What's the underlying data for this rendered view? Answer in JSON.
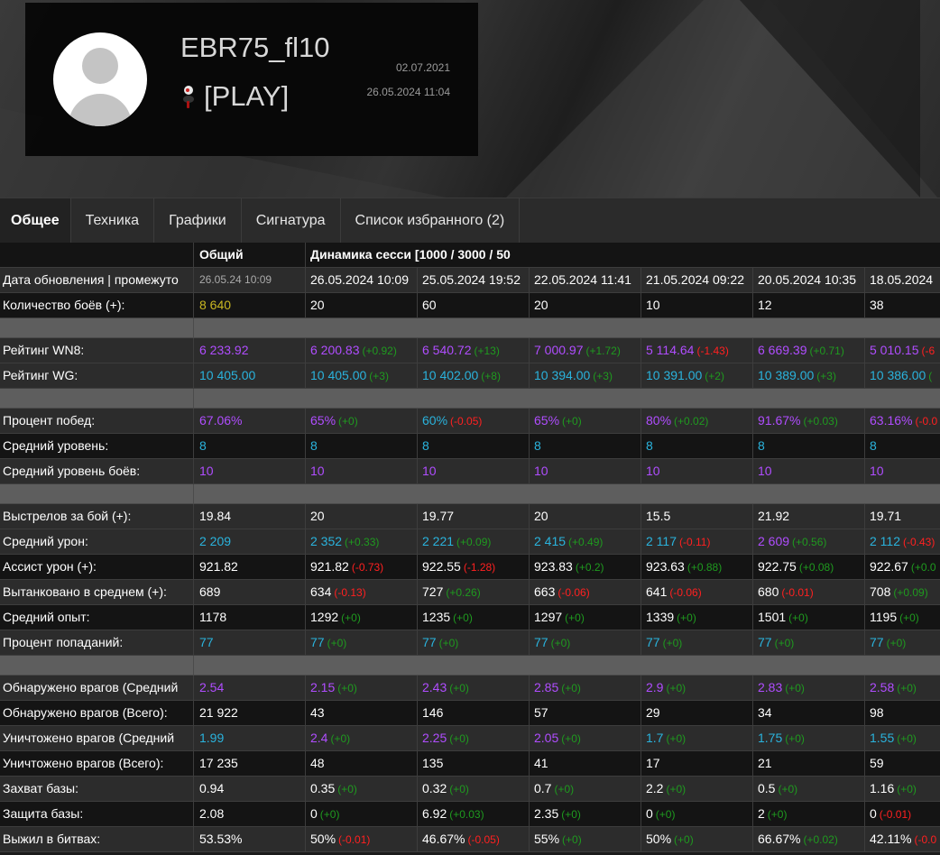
{
  "profile": {
    "name": "EBR75_fl10",
    "clan": "[PLAY]",
    "registered": "02.07.2021",
    "last_seen": "26.05.2024 11:04"
  },
  "tabs": [
    {
      "label": "Общее",
      "active": true
    },
    {
      "label": "Техника"
    },
    {
      "label": "Графики"
    },
    {
      "label": "Сигнатура"
    },
    {
      "label": "Список избранного (2)"
    }
  ],
  "colors": {
    "purple": "#b04dff",
    "cyan": "#2ab3dd",
    "yellow": "#c9b722",
    "green": "#1f9a1f",
    "red": "#ff2020"
  },
  "table": {
    "header": {
      "overall": "Общий",
      "sessions": "Динамика сесси [1000 / 3000 / 50"
    },
    "rows": [
      {
        "label": "Дата обновления | промежуто",
        "bg": "l",
        "overall": {
          "v": "26.05.24 10:09",
          "c": "small"
        },
        "cells": [
          {
            "v": "26.05.2024 10:09"
          },
          {
            "v": "25.05.2024 19:52"
          },
          {
            "v": "22.05.2024 11:41"
          },
          {
            "v": "21.05.2024 09:22"
          },
          {
            "v": "20.05.2024 10:35"
          },
          {
            "v": "18.05.2024"
          }
        ]
      },
      {
        "label": "Количество боёв (+):",
        "bg": "d",
        "overall": {
          "v": "8 640",
          "c": "y"
        },
        "cells": [
          {
            "v": "20"
          },
          {
            "v": "60"
          },
          {
            "v": "20"
          },
          {
            "v": "10"
          },
          {
            "v": "12"
          },
          {
            "v": "38"
          }
        ]
      },
      {
        "sep": true
      },
      {
        "label": "Рейтинг WN8:",
        "bg": "l",
        "overall": {
          "v": "6 233.92",
          "c": "p"
        },
        "cells": [
          {
            "v": "6 200.83",
            "c": "p",
            "d": "(+0.92)",
            "dc": "dg"
          },
          {
            "v": "6 540.72",
            "c": "p",
            "d": "(+13)",
            "dc": "dg"
          },
          {
            "v": "7 000.97",
            "c": "p",
            "d": "(+1.72)",
            "dc": "dg"
          },
          {
            "v": "5 114.64",
            "c": "p",
            "d": "(-1.43)",
            "dc": "dr"
          },
          {
            "v": "6 669.39",
            "c": "p",
            "d": "(+0.71)",
            "dc": "dg"
          },
          {
            "v": "5 010.15",
            "c": "p",
            "d": "(-6",
            "dc": "dr"
          }
        ]
      },
      {
        "label": "Рейтинг WG:",
        "bg": "l",
        "overall": {
          "v": "10 405.00",
          "c": "cy"
        },
        "cells": [
          {
            "v": "10 405.00",
            "c": "cy",
            "d": "(+3)",
            "dc": "dg"
          },
          {
            "v": "10 402.00",
            "c": "cy",
            "d": "(+8)",
            "dc": "dg"
          },
          {
            "v": "10 394.00",
            "c": "cy",
            "d": "(+3)",
            "dc": "dg"
          },
          {
            "v": "10 391.00",
            "c": "cy",
            "d": "(+2)",
            "dc": "dg"
          },
          {
            "v": "10 389.00",
            "c": "cy",
            "d": "(+3)",
            "dc": "dg"
          },
          {
            "v": "10 386.00",
            "c": "cy",
            "d": "(",
            "dc": "dg"
          }
        ]
      },
      {
        "sep": true
      },
      {
        "label": "Процент побед:",
        "bg": "l",
        "overall": {
          "v": "67.06%",
          "c": "p"
        },
        "cells": [
          {
            "v": "65%",
            "c": "p",
            "d": "(+0)",
            "dc": "dg"
          },
          {
            "v": "60%",
            "c": "cy",
            "d": "(-0.05)",
            "dc": "dr"
          },
          {
            "v": "65%",
            "c": "p",
            "d": "(+0)",
            "dc": "dg"
          },
          {
            "v": "80%",
            "c": "p",
            "d": "(+0.02)",
            "dc": "dg"
          },
          {
            "v": "91.67%",
            "c": "p",
            "d": "(+0.03)",
            "dc": "dg"
          },
          {
            "v": "63.16%",
            "c": "p",
            "d": "(-0.0",
            "dc": "dr"
          }
        ]
      },
      {
        "label": "Средний уровень:",
        "bg": "d",
        "overall": {
          "v": "8",
          "c": "cy"
        },
        "cells": [
          {
            "v": "8",
            "c": "cy"
          },
          {
            "v": "8",
            "c": "cy"
          },
          {
            "v": "8",
            "c": "cy"
          },
          {
            "v": "8",
            "c": "cy"
          },
          {
            "v": "8",
            "c": "cy"
          },
          {
            "v": "8",
            "c": "cy"
          }
        ]
      },
      {
        "label": "Средний уровень боёв:",
        "bg": "l",
        "overall": {
          "v": "10",
          "c": "p"
        },
        "cells": [
          {
            "v": "10",
            "c": "p"
          },
          {
            "v": "10",
            "c": "p"
          },
          {
            "v": "10",
            "c": "p"
          },
          {
            "v": "10",
            "c": "p"
          },
          {
            "v": "10",
            "c": "p"
          },
          {
            "v": "10",
            "c": "p"
          }
        ]
      },
      {
        "sep": true
      },
      {
        "label": "Выстрелов за бой (+):",
        "bg": "l",
        "overall": {
          "v": "19.84"
        },
        "cells": [
          {
            "v": "20"
          },
          {
            "v": "19.77"
          },
          {
            "v": "20"
          },
          {
            "v": "15.5"
          },
          {
            "v": "21.92"
          },
          {
            "v": "19.71"
          }
        ]
      },
      {
        "label": "Средний урон:",
        "bg": "l",
        "overall": {
          "v": "2 209",
          "c": "cy"
        },
        "cells": [
          {
            "v": "2 352",
            "c": "cy",
            "d": "(+0.33)",
            "dc": "dg"
          },
          {
            "v": "2 221",
            "c": "cy",
            "d": "(+0.09)",
            "dc": "dg"
          },
          {
            "v": "2 415",
            "c": "cy",
            "d": "(+0.49)",
            "dc": "dg"
          },
          {
            "v": "2 117",
            "c": "cy",
            "d": "(-0.11)",
            "dc": "dr"
          },
          {
            "v": "2 609",
            "c": "p",
            "d": "(+0.56)",
            "dc": "dg"
          },
          {
            "v": "2 112",
            "c": "cy",
            "d": "(-0.43)",
            "dc": "dr"
          }
        ]
      },
      {
        "label": "Ассист урон (+):",
        "bg": "d",
        "overall": {
          "v": "921.82"
        },
        "cells": [
          {
            "v": "921.82",
            "d": "(-0.73)",
            "dc": "dr"
          },
          {
            "v": "922.55",
            "d": "(-1.28)",
            "dc": "dr"
          },
          {
            "v": "923.83",
            "d": "(+0.2)",
            "dc": "dg"
          },
          {
            "v": "923.63",
            "d": "(+0.88)",
            "dc": "dg"
          },
          {
            "v": "922.75",
            "d": "(+0.08)",
            "dc": "dg"
          },
          {
            "v": "922.67",
            "d": "(+0.0",
            "dc": "dg"
          }
        ]
      },
      {
        "label": "Вытанковано в среднем (+):",
        "bg": "l",
        "overall": {
          "v": "689"
        },
        "cells": [
          {
            "v": "634",
            "d": "(-0.13)",
            "dc": "dr"
          },
          {
            "v": "727",
            "d": "(+0.26)",
            "dc": "dg"
          },
          {
            "v": "663",
            "d": "(-0.06)",
            "dc": "dr"
          },
          {
            "v": "641",
            "d": "(-0.06)",
            "dc": "dr"
          },
          {
            "v": "680",
            "d": "(-0.01)",
            "dc": "dr"
          },
          {
            "v": "708",
            "d": "(+0.09)",
            "dc": "dg"
          }
        ]
      },
      {
        "label": "Средний опыт:",
        "bg": "d",
        "overall": {
          "v": "1178"
        },
        "cells": [
          {
            "v": "1292",
            "d": "(+0)",
            "dc": "dg"
          },
          {
            "v": "1235",
            "d": "(+0)",
            "dc": "dg"
          },
          {
            "v": "1297",
            "d": "(+0)",
            "dc": "dg"
          },
          {
            "v": "1339",
            "d": "(+0)",
            "dc": "dg"
          },
          {
            "v": "1501",
            "d": "(+0)",
            "dc": "dg"
          },
          {
            "v": "1195",
            "d": "(+0)",
            "dc": "dg"
          }
        ]
      },
      {
        "label": "Процент попаданий:",
        "bg": "l",
        "overall": {
          "v": "77",
          "c": "cy"
        },
        "cells": [
          {
            "v": "77",
            "c": "cy",
            "d": "(+0)",
            "dc": "dg"
          },
          {
            "v": "77",
            "c": "cy",
            "d": "(+0)",
            "dc": "dg"
          },
          {
            "v": "77",
            "c": "cy",
            "d": "(+0)",
            "dc": "dg"
          },
          {
            "v": "77",
            "c": "cy",
            "d": "(+0)",
            "dc": "dg"
          },
          {
            "v": "77",
            "c": "cy",
            "d": "(+0)",
            "dc": "dg"
          },
          {
            "v": "77",
            "c": "cy",
            "d": "(+0)",
            "dc": "dg"
          }
        ]
      },
      {
        "sep": true
      },
      {
        "label": "Обнаружено врагов (Средний",
        "bg": "l",
        "overall": {
          "v": "2.54",
          "c": "p"
        },
        "cells": [
          {
            "v": "2.15",
            "c": "p",
            "d": "(+0)",
            "dc": "dg"
          },
          {
            "v": "2.43",
            "c": "p",
            "d": "(+0)",
            "dc": "dg"
          },
          {
            "v": "2.85",
            "c": "p",
            "d": "(+0)",
            "dc": "dg"
          },
          {
            "v": "2.9",
            "c": "p",
            "d": "(+0)",
            "dc": "dg"
          },
          {
            "v": "2.83",
            "c": "p",
            "d": "(+0)",
            "dc": "dg"
          },
          {
            "v": "2.58",
            "c": "p",
            "d": "(+0)",
            "dc": "dg"
          }
        ]
      },
      {
        "label": "Обнаружено врагов (Всего):",
        "bg": "d",
        "overall": {
          "v": "21 922"
        },
        "cells": [
          {
            "v": "43"
          },
          {
            "v": "146"
          },
          {
            "v": "57"
          },
          {
            "v": "29"
          },
          {
            "v": "34"
          },
          {
            "v": "98"
          }
        ]
      },
      {
        "label": "Уничтожено врагов (Средний",
        "bg": "l",
        "overall": {
          "v": "1.99",
          "c": "cy"
        },
        "cells": [
          {
            "v": "2.4",
            "c": "p",
            "d": "(+0)",
            "dc": "dg"
          },
          {
            "v": "2.25",
            "c": "p",
            "d": "(+0)",
            "dc": "dg"
          },
          {
            "v": "2.05",
            "c": "p",
            "d": "(+0)",
            "dc": "dg"
          },
          {
            "v": "1.7",
            "c": "cy",
            "d": "(+0)",
            "dc": "dg"
          },
          {
            "v": "1.75",
            "c": "cy",
            "d": "(+0)",
            "dc": "dg"
          },
          {
            "v": "1.55",
            "c": "cy",
            "d": "(+0)",
            "dc": "dg"
          }
        ]
      },
      {
        "label": "Уничтожено врагов (Всего):",
        "bg": "d",
        "overall": {
          "v": "17 235"
        },
        "cells": [
          {
            "v": "48"
          },
          {
            "v": "135"
          },
          {
            "v": "41"
          },
          {
            "v": "17"
          },
          {
            "v": "21"
          },
          {
            "v": "59"
          }
        ]
      },
      {
        "label": "Захват базы:",
        "bg": "l",
        "overall": {
          "v": "0.94"
        },
        "cells": [
          {
            "v": "0.35",
            "d": "(+0)",
            "dc": "dg"
          },
          {
            "v": "0.32",
            "d": "(+0)",
            "dc": "dg"
          },
          {
            "v": "0.7",
            "d": "(+0)",
            "dc": "dg"
          },
          {
            "v": "2.2",
            "d": "(+0)",
            "dc": "dg"
          },
          {
            "v": "0.5",
            "d": "(+0)",
            "dc": "dg"
          },
          {
            "v": "1.16",
            "d": "(+0)",
            "dc": "dg"
          }
        ]
      },
      {
        "label": "Защита базы:",
        "bg": "d",
        "overall": {
          "v": "2.08"
        },
        "cells": [
          {
            "v": "0",
            "d": "(+0)",
            "dc": "dg"
          },
          {
            "v": "6.92",
            "d": "(+0.03)",
            "dc": "dg"
          },
          {
            "v": "2.35",
            "d": "(+0)",
            "dc": "dg"
          },
          {
            "v": "0",
            "d": "(+0)",
            "dc": "dg"
          },
          {
            "v": "2",
            "d": "(+0)",
            "dc": "dg"
          },
          {
            "v": "0",
            "d": "(-0.01)",
            "dc": "dr"
          }
        ]
      },
      {
        "label": "Выжил в битвах:",
        "bg": "l",
        "overall": {
          "v": "53.53%"
        },
        "cells": [
          {
            "v": "50%",
            "d": "(-0.01)",
            "dc": "dr"
          },
          {
            "v": "46.67%",
            "d": "(-0.05)",
            "dc": "dr"
          },
          {
            "v": "55%",
            "d": "(+0)",
            "dc": "dg"
          },
          {
            "v": "50%",
            "d": "(+0)",
            "dc": "dg"
          },
          {
            "v": "66.67%",
            "d": "(+0.02)",
            "dc": "dg"
          },
          {
            "v": "42.11%",
            "d": "(-0.0",
            "dc": "dr"
          }
        ]
      }
    ]
  }
}
